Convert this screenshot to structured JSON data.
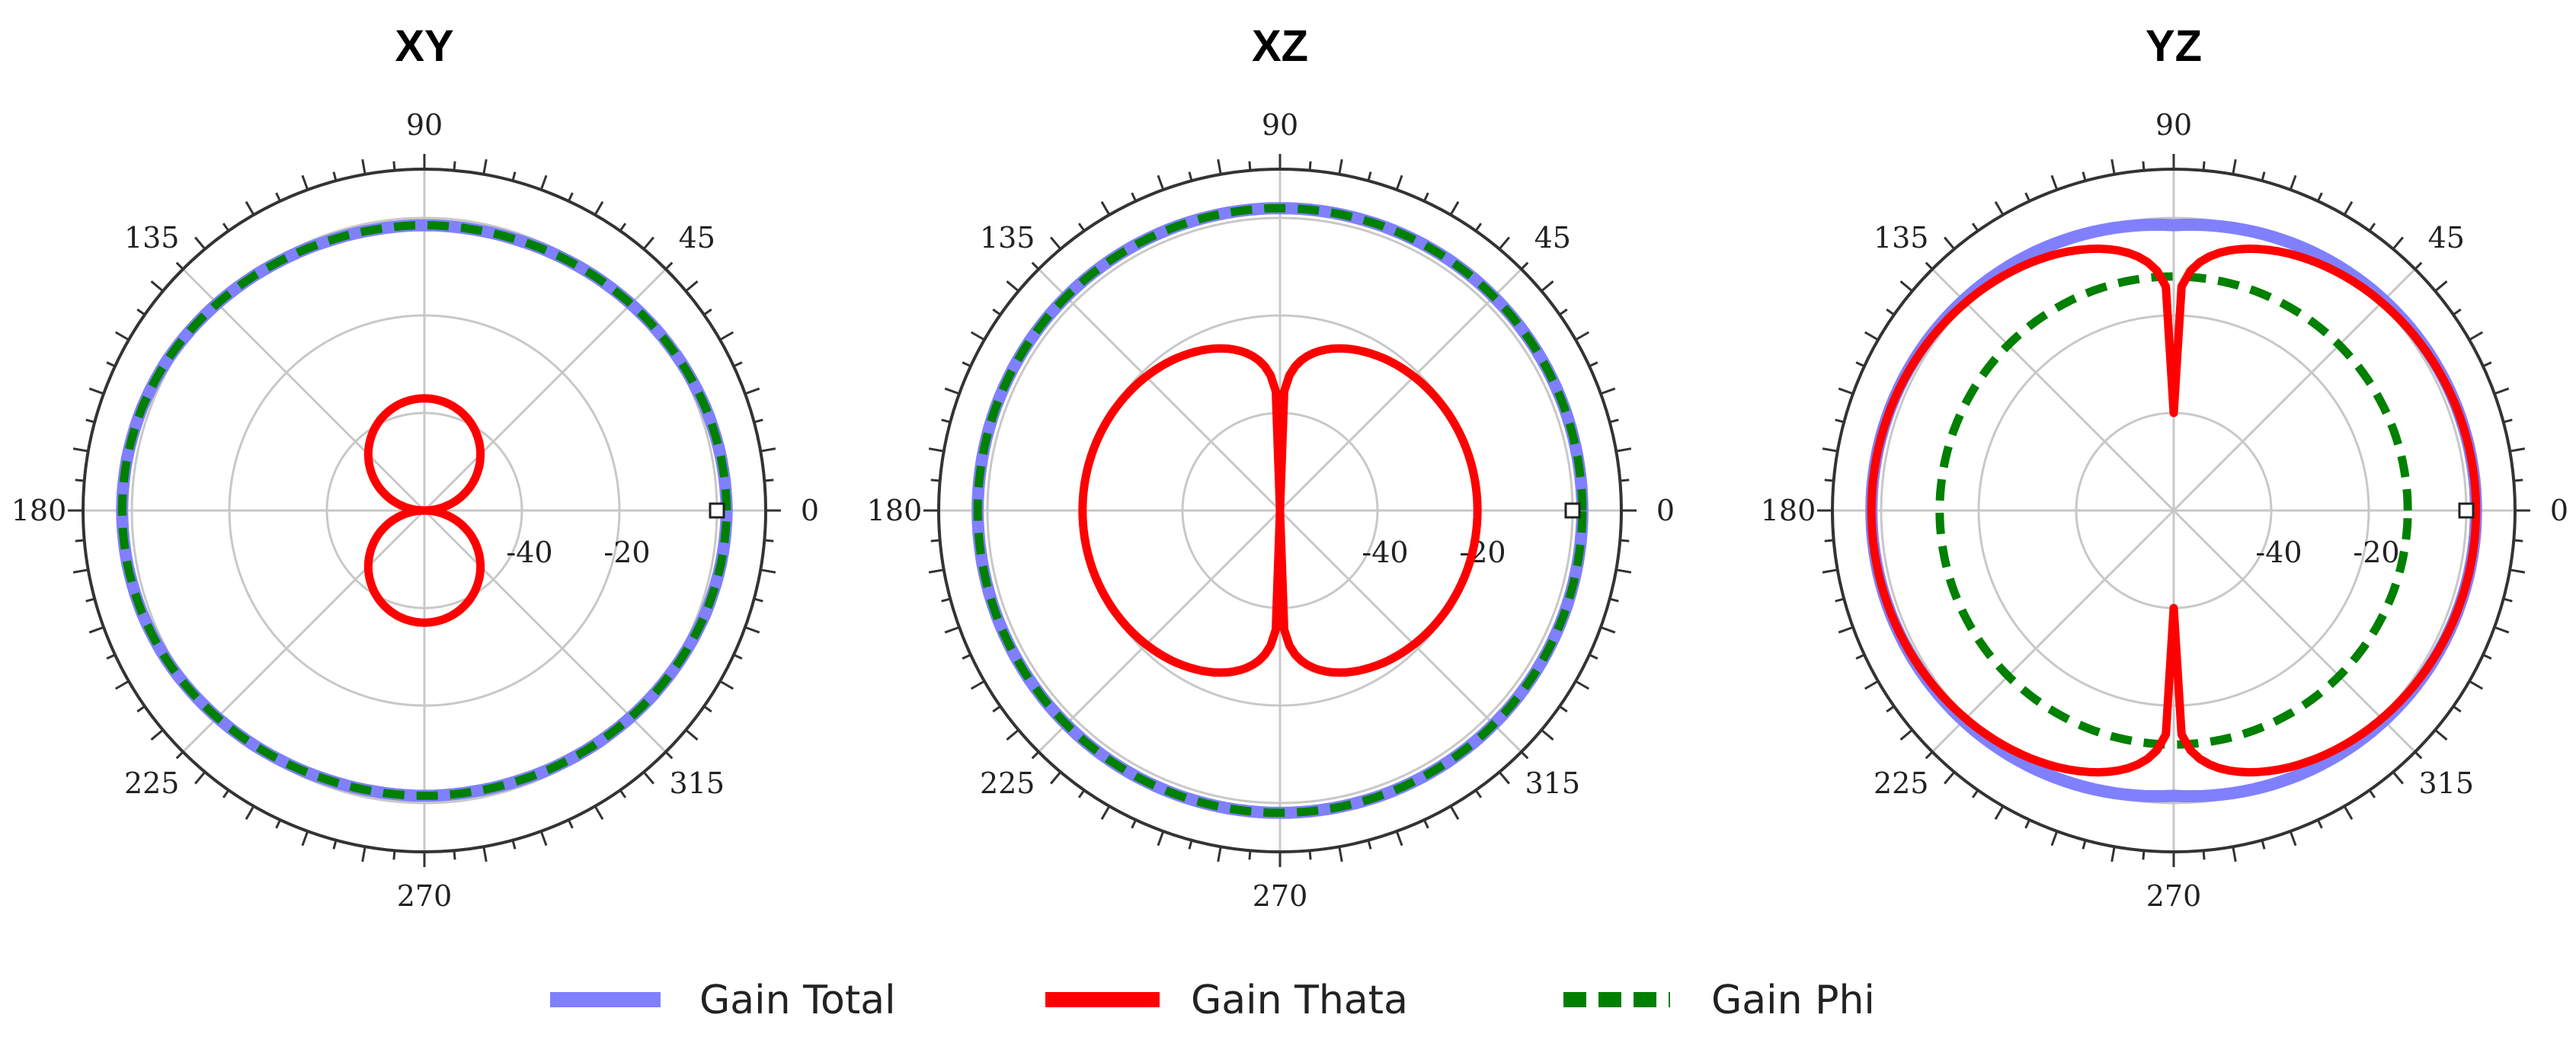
{
  "chart_data": [
    {
      "type": "polar-line",
      "title": "XY",
      "angle_labels": [
        "0",
        "45",
        "90",
        "135",
        "180",
        "225",
        "270",
        "315"
      ],
      "radial_labels": [
        "-40",
        "-20"
      ],
      "radial_range_db": [
        -60,
        10
      ],
      "angles_deg": [
        0,
        10,
        20,
        30,
        40,
        50,
        60,
        70,
        80,
        90,
        100,
        110,
        120,
        130,
        140,
        150,
        160,
        170,
        180,
        190,
        200,
        210,
        220,
        230,
        240,
        250,
        260,
        270,
        280,
        290,
        300,
        310,
        320,
        330,
        340,
        350
      ],
      "series": [
        {
          "name": "Gain Total",
          "color": "#8080ff",
          "style": "solid",
          "values": [
            2.0,
            1.8,
            1.4,
            0.8,
            0.2,
            -0.4,
            -0.9,
            -1.3,
            -1.5,
            -1.5,
            -1.5,
            -1.3,
            -0.9,
            -0.3,
            0.4,
            1.1,
            1.6,
            1.9,
            2.0,
            1.9,
            1.6,
            1.1,
            0.4,
            -0.3,
            -0.9,
            -1.3,
            -1.5,
            -1.5,
            -1.5,
            -1.3,
            -0.9,
            -0.4,
            0.2,
            0.8,
            1.4,
            1.8
          ]
        },
        {
          "name": "Gain Thata",
          "color": "#ff0000",
          "style": "solid",
          "figure8_peak_db": -37,
          "figure8_axis_deg": 90
        },
        {
          "name": "Gain Phi",
          "color": "#008000",
          "style": "dashed",
          "values": [
            2.0,
            1.8,
            1.4,
            0.8,
            0.2,
            -0.4,
            -0.9,
            -1.3,
            -1.5,
            -1.5,
            -1.5,
            -1.3,
            -0.9,
            -0.3,
            0.4,
            1.1,
            1.6,
            1.9,
            2.0,
            1.9,
            1.6,
            1.1,
            0.4,
            -0.3,
            -0.9,
            -1.3,
            -1.5,
            -1.5,
            -1.5,
            -1.3,
            -0.9,
            -0.4,
            0.2,
            0.8,
            1.4,
            1.8
          ]
        }
      ]
    },
    {
      "type": "polar-line",
      "title": "XZ",
      "angle_labels": [
        "0",
        "45",
        "90",
        "135",
        "180",
        "225",
        "270",
        "315"
      ],
      "radial_labels": [
        "-40",
        "-20"
      ],
      "radial_range_db": [
        -60,
        10
      ],
      "series": [
        {
          "name": "Gain Total",
          "color": "#8080ff",
          "style": "solid",
          "constant_db": 2.0
        },
        {
          "name": "Gain Thata",
          "color": "#ff0000",
          "style": "solid",
          "pattern": "cos-theta",
          "peak_db": -19.5,
          "null_db": -60
        },
        {
          "name": "Gain Phi",
          "color": "#008000",
          "style": "dashed",
          "constant_db": 2.0
        }
      ]
    },
    {
      "type": "polar-line",
      "title": "YZ",
      "angle_labels": [
        "0",
        "45",
        "90",
        "135",
        "180",
        "225",
        "270",
        "315"
      ],
      "radial_labels": [
        "-40",
        "-20"
      ],
      "radial_range_db": [
        -60,
        10
      ],
      "series": [
        {
          "name": "Gain Total",
          "color": "#8080ff",
          "style": "solid",
          "equator_db": 2.0,
          "pole_db": -1.5
        },
        {
          "name": "Gain Thata",
          "color": "#ff0000",
          "style": "solid",
          "equator_db": 2.0,
          "pole_db": -40,
          "notch_width_deg": 18
        },
        {
          "name": "Gain Phi",
          "color": "#008000",
          "style": "dashed",
          "constant_db": -12
        }
      ]
    }
  ],
  "legend": [
    {
      "label": "Gain Total",
      "color": "#8080ff",
      "style": "solid"
    },
    {
      "label": "Gain Thata",
      "color": "#ff0000",
      "style": "solid"
    },
    {
      "label": "Gain Phi",
      "color": "#008000",
      "style": "dashed"
    }
  ]
}
